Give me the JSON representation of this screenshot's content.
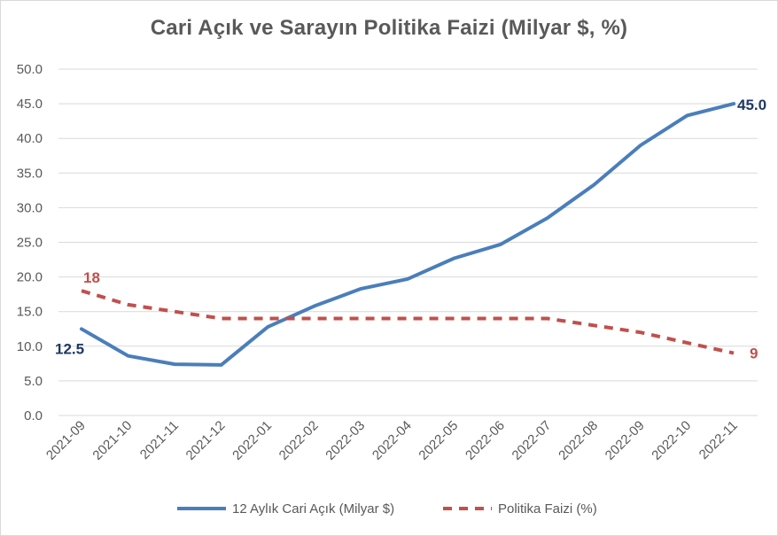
{
  "chart_data": {
    "type": "line",
    "title": "Cari Açık ve Sarayın Politika Faizi (Milyar $, %)",
    "categories": [
      "2021-09",
      "2021-10",
      "2021-11",
      "2021-12",
      "2022-01",
      "2022-02",
      "2022-03",
      "2022-04",
      "2022-05",
      "2022-06",
      "2022-07",
      "2022-08",
      "2022-09",
      "2022-10",
      "2022-11"
    ],
    "ylim": [
      0,
      50
    ],
    "yticks": [
      "0.0",
      "5.0",
      "10.0",
      "15.0",
      "20.0",
      "25.0",
      "30.0",
      "35.0",
      "40.0",
      "45.0",
      "50.0"
    ],
    "grid": true,
    "legend_position": "bottom",
    "series": [
      {
        "name": "12 Aylık Cari Açık (Milyar $)",
        "color": "#4a7ebb",
        "style": "solid",
        "values": [
          12.5,
          8.6,
          7.4,
          7.3,
          12.8,
          15.8,
          18.3,
          19.7,
          22.7,
          24.7,
          28.5,
          33.3,
          39.0,
          43.3,
          45.0
        ],
        "end_labels": [
          "12.5",
          "45.0"
        ],
        "label_color": "#1f3864"
      },
      {
        "name": "Politika Faizi (%)",
        "color": "#c0504d",
        "style": "dashed",
        "values": [
          18,
          16,
          15,
          14,
          14,
          14,
          14,
          14,
          14,
          14,
          14,
          13,
          12,
          10.5,
          9
        ],
        "end_labels": [
          "18",
          "9"
        ],
        "label_color": "#c0504d"
      }
    ]
  }
}
